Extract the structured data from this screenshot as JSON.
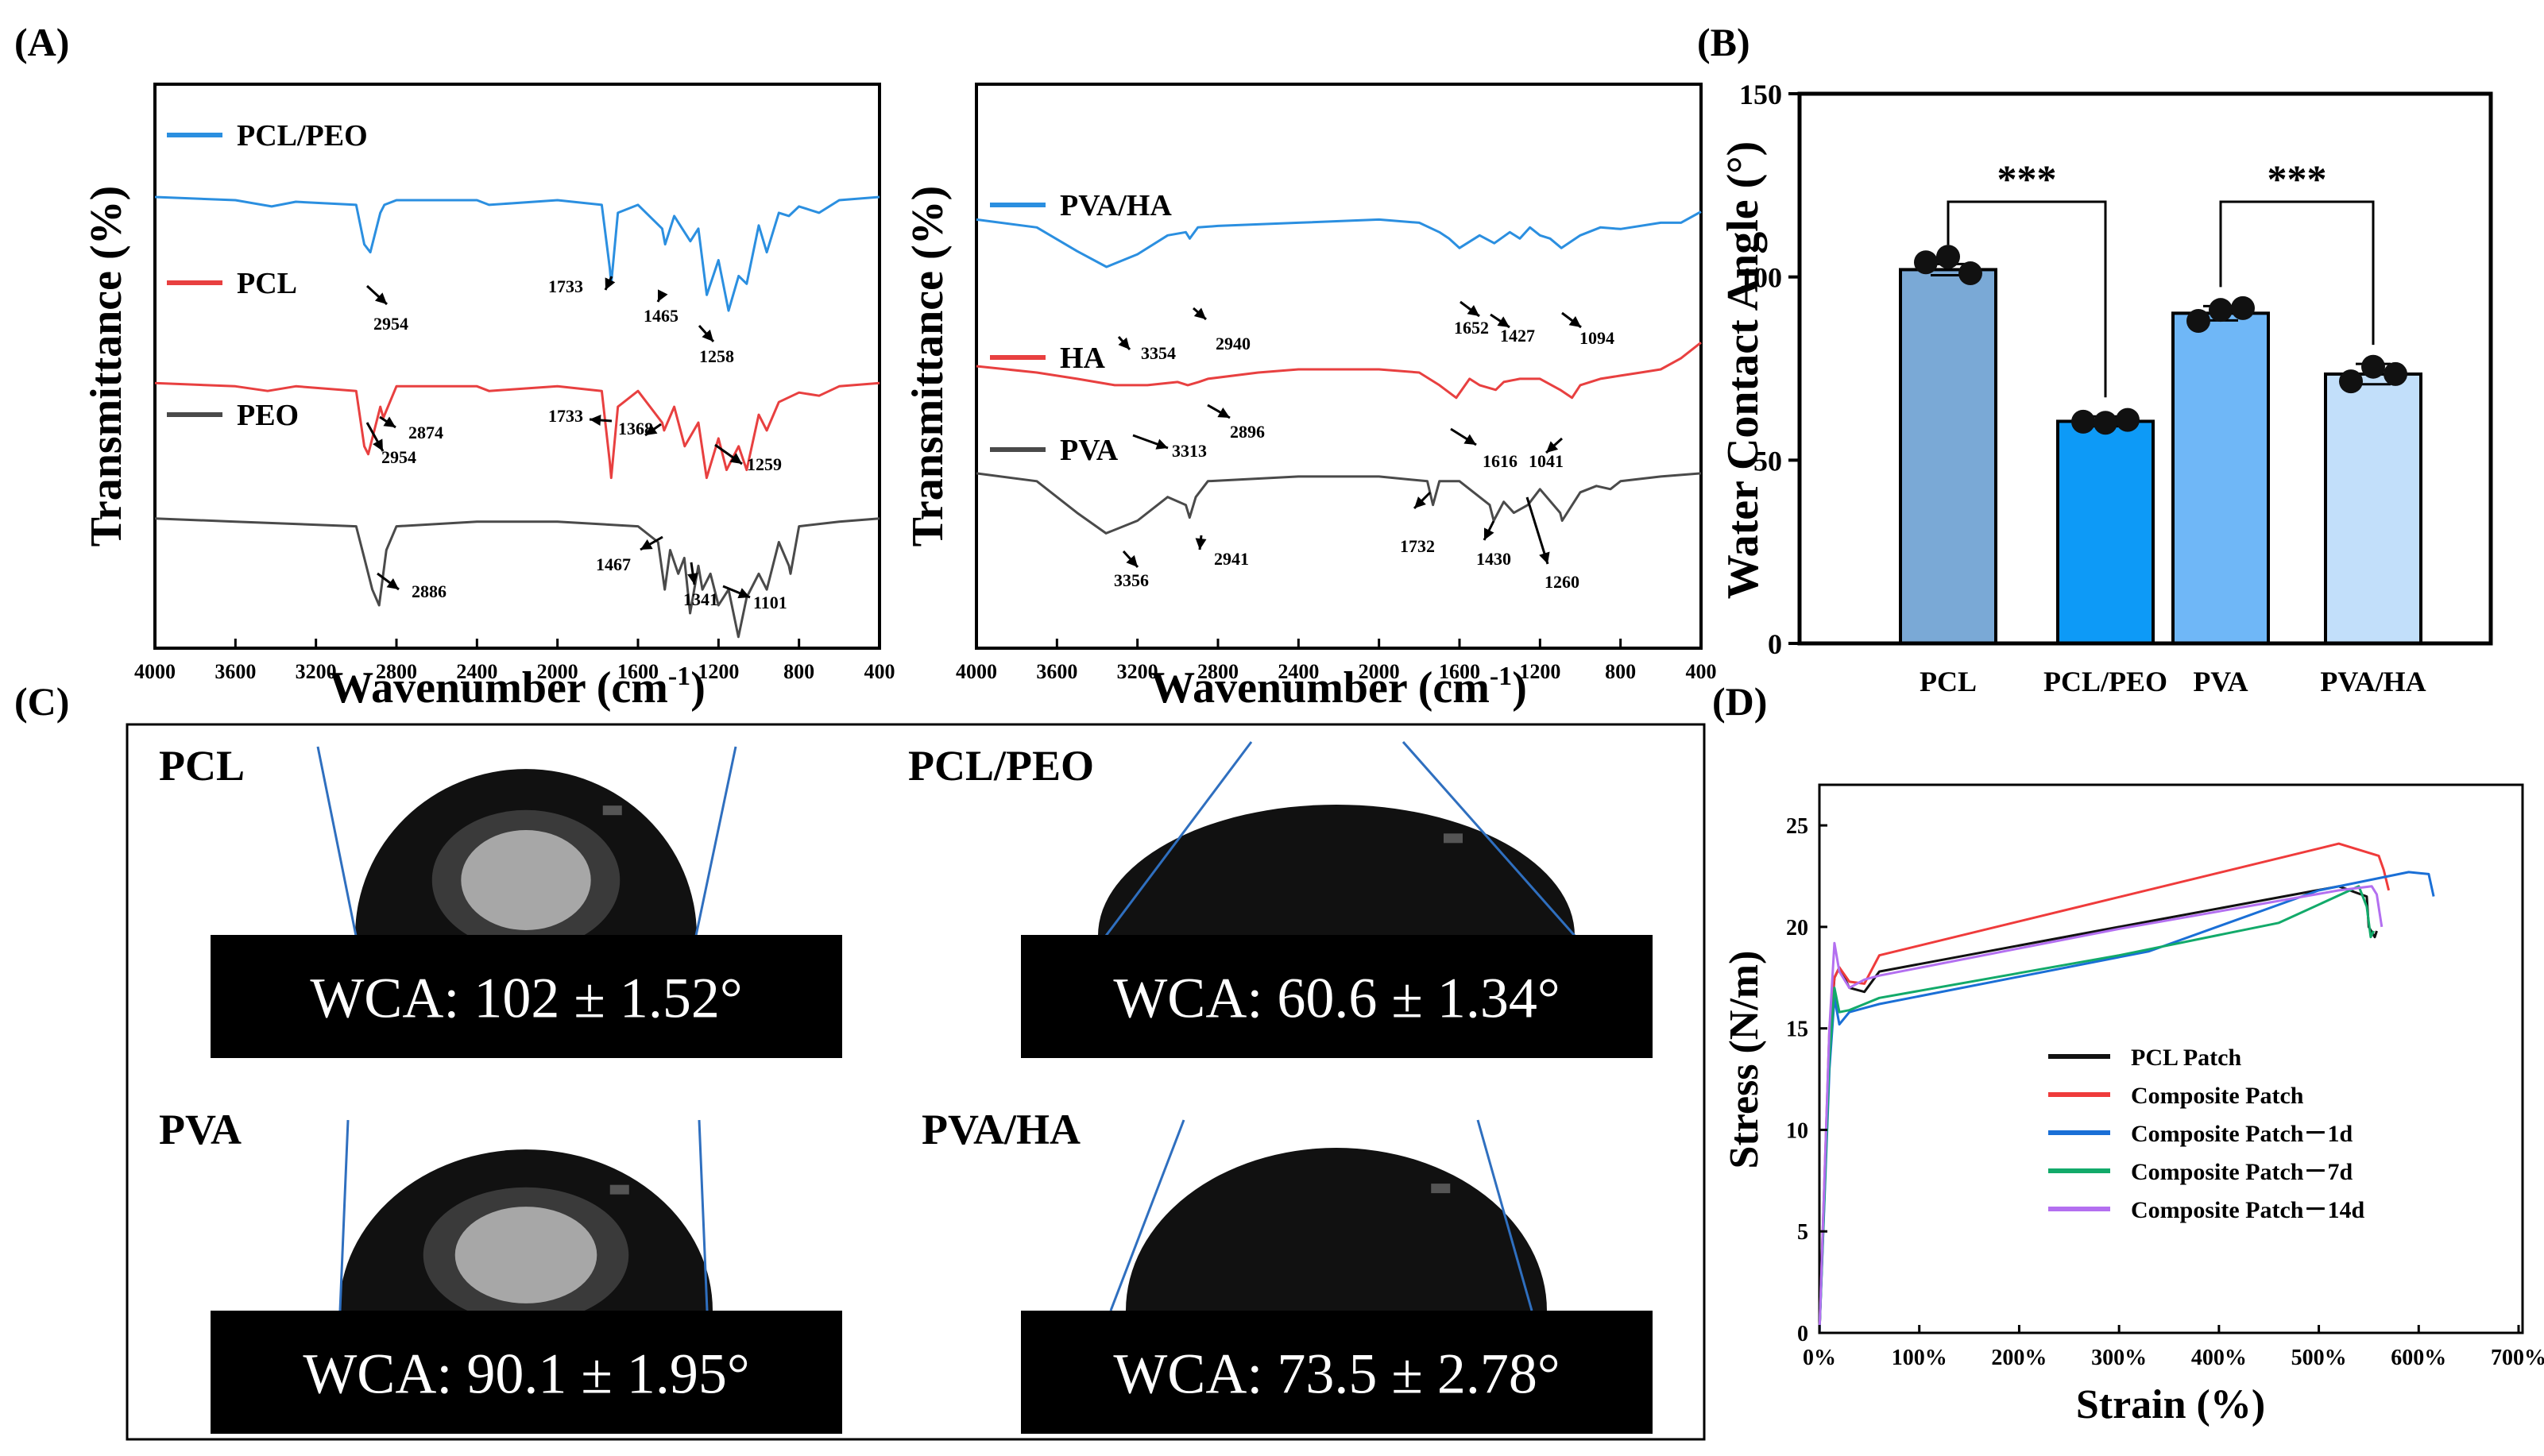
{
  "panel_labels": {
    "a": "(A)",
    "b": "(B)",
    "c": "(C)",
    "d": "(D)"
  },
  "colors": {
    "blue": "#2b8fe0",
    "red": "#e84040",
    "gray": "#4a4a4a",
    "bar1": "#7aa9d6",
    "bar2": "#0d9af7",
    "bar3": "#6fb7f7",
    "bar4": "#c2dffa",
    "d_black": "#111111",
    "d_red": "#ef3b3b",
    "d_blue": "#1a6fd6",
    "d_green": "#12aa6a",
    "d_purple": "#b36ff0"
  },
  "chart_data": [
    {
      "id": "A1",
      "type": "line",
      "xlabel": "Wavenumber (cm",
      "xlabel_sup": "-1",
      "xlabel_close": ")",
      "ylabel": "Transmittance (%)",
      "xlim": [
        4000,
        400
      ],
      "xticks": [
        4000,
        3600,
        3200,
        2800,
        2400,
        2000,
        1600,
        1200,
        800,
        400
      ],
      "series": [
        {
          "name": "PCL/PEO",
          "color": "#2b8fe0",
          "offset": 0.2,
          "x": [
            4000,
            3600,
            3420,
            3300,
            3000,
            2960,
            2930,
            2880,
            2860,
            2800,
            2400,
            2340,
            2000,
            1780,
            1740,
            1733,
            1700,
            1600,
            1480,
            1465,
            1420,
            1380,
            1340,
            1300,
            1258,
            1200,
            1150,
            1100,
            1060,
            1000,
            960,
            900,
            850,
            800,
            700,
            600,
            400
          ],
          "y": [
            0,
            0.02,
            0.06,
            0.03,
            0.05,
            0.3,
            0.35,
            0.1,
            0.05,
            0.02,
            0.02,
            0.05,
            0.02,
            0.05,
            0.45,
            0.55,
            0.1,
            0.05,
            0.2,
            0.3,
            0.12,
            0.2,
            0.28,
            0.2,
            0.62,
            0.4,
            0.72,
            0.5,
            0.55,
            0.18,
            0.35,
            0.1,
            0.12,
            0.06,
            0.1,
            0.02,
            0
          ]
        },
        {
          "name": "PCL",
          "color": "#e84040",
          "offset": 0.53,
          "x": [
            4000,
            3600,
            3440,
            3300,
            3000,
            2960,
            2940,
            2880,
            2865,
            2800,
            2400,
            2340,
            2000,
            1780,
            1740,
            1733,
            1700,
            1600,
            1480,
            1470,
            1420,
            1368,
            1300,
            1259,
            1200,
            1160,
            1100,
            1060,
            1000,
            960,
            900,
            800,
            700,
            600,
            400
          ],
          "y": [
            0,
            0.02,
            0.05,
            0.02,
            0.05,
            0.4,
            0.45,
            0.15,
            0.22,
            0.02,
            0.02,
            0.05,
            0.02,
            0.05,
            0.5,
            0.6,
            0.15,
            0.05,
            0.25,
            0.3,
            0.15,
            0.4,
            0.25,
            0.6,
            0.35,
            0.55,
            0.4,
            0.55,
            0.2,
            0.3,
            0.12,
            0.06,
            0.08,
            0.02,
            0
          ]
        },
        {
          "name": "PEO",
          "color": "#4a4a4a",
          "offset": 0.77,
          "x": [
            4000,
            3600,
            3000,
            2960,
            2920,
            2886,
            2850,
            2800,
            2400,
            2000,
            1600,
            1500,
            1467,
            1440,
            1400,
            1370,
            1341,
            1300,
            1280,
            1240,
            1200,
            1150,
            1101,
            1060,
            1000,
            960,
            900,
            850,
            842,
            800,
            600,
            400
          ],
          "y": [
            0,
            0.02,
            0.05,
            0.25,
            0.45,
            0.55,
            0.2,
            0.05,
            0.02,
            0.02,
            0.05,
            0.15,
            0.45,
            0.2,
            0.35,
            0.25,
            0.6,
            0.3,
            0.45,
            0.35,
            0.55,
            0.45,
            0.75,
            0.5,
            0.35,
            0.45,
            0.15,
            0.3,
            0.35,
            0.05,
            0.02,
            0
          ]
        }
      ],
      "legend": [
        "PCL/PEO",
        "PCL",
        "PEO"
      ],
      "annotations": [
        "2954",
        "1733",
        "1465",
        "1258",
        "2874",
        "2954",
        "1733",
        "1368",
        "1259",
        "2886",
        "1467",
        "1341",
        "1101"
      ]
    },
    {
      "id": "A2",
      "type": "line",
      "xlabel": "Wavenumber (cm",
      "xlabel_sup": "-1",
      "xlabel_close": ")",
      "ylabel": "Transmittance (%)",
      "xlim": [
        4000,
        400
      ],
      "xticks": [
        4000,
        3600,
        3200,
        2800,
        2400,
        2000,
        1600,
        1200,
        800,
        400
      ],
      "series": [
        {
          "name": "PVA/HA",
          "color": "#2b8fe0",
          "offset": 0.24,
          "x": [
            4000,
            3700,
            3500,
            3354,
            3200,
            3050,
            2960,
            2940,
            2900,
            2800,
            2400,
            2000,
            1800,
            1700,
            1652,
            1600,
            1500,
            1427,
            1350,
            1300,
            1250,
            1200,
            1150,
            1094,
            1000,
            900,
            800,
            600,
            500,
            400
          ],
          "y": [
            0,
            0.05,
            0.2,
            0.3,
            0.22,
            0.1,
            0.08,
            0.12,
            0.05,
            0.04,
            0.02,
            0,
            0.02,
            0.08,
            0.12,
            0.18,
            0.1,
            0.15,
            0.08,
            0.12,
            0.05,
            0.1,
            0.12,
            0.18,
            0.1,
            0.05,
            0.06,
            0.02,
            0.02,
            -0.05
          ]
        },
        {
          "name": "HA",
          "color": "#e84040",
          "offset": 0.5,
          "x": [
            4000,
            3700,
            3500,
            3313,
            3150,
            3000,
            2950,
            2896,
            2850,
            2600,
            2400,
            2000,
            1800,
            1700,
            1616,
            1550,
            1500,
            1420,
            1380,
            1300,
            1200,
            1100,
            1041,
            1000,
            900,
            800,
            700,
            600,
            500,
            400
          ],
          "y": [
            0,
            0.04,
            0.08,
            0.12,
            0.12,
            0.1,
            0.12,
            0.1,
            0.08,
            0.04,
            0.02,
            0.02,
            0.04,
            0.12,
            0.2,
            0.08,
            0.12,
            0.15,
            0.1,
            0.08,
            0.08,
            0.15,
            0.2,
            0.12,
            0.08,
            0.06,
            0.04,
            0.02,
            -0.05,
            -0.15
          ]
        },
        {
          "name": "PVA",
          "color": "#4a4a4a",
          "offset": 0.69,
          "x": [
            4000,
            3700,
            3500,
            3356,
            3200,
            3050,
            2960,
            2941,
            2910,
            2850,
            2400,
            2000,
            1760,
            1732,
            1700,
            1600,
            1450,
            1430,
            1380,
            1330,
            1260,
            1200,
            1100,
            1090,
            1000,
            920,
            850,
            800,
            600,
            400
          ],
          "y": [
            0,
            0.05,
            0.25,
            0.38,
            0.3,
            0.15,
            0.2,
            0.28,
            0.15,
            0.05,
            0.02,
            0.02,
            0.05,
            0.2,
            0.05,
            0.05,
            0.2,
            0.3,
            0.18,
            0.25,
            0.2,
            0.1,
            0.25,
            0.3,
            0.12,
            0.08,
            0.1,
            0.05,
            0.02,
            0
          ]
        }
      ],
      "legend": [
        "PVA/HA",
        "HA",
        "PVA"
      ],
      "annotations": [
        "3354",
        "2940",
        "1652",
        "1427",
        "1094",
        "3313",
        "2896",
        "1616",
        "1041",
        "3356",
        "2941",
        "1732",
        "1430",
        "1260"
      ]
    },
    {
      "id": "B",
      "type": "bar",
      "ylabel": "Water Contact Angle (°)",
      "categories": [
        "PCL",
        "PCL/PEO",
        "PVA",
        "PVA/HA"
      ],
      "values": [
        102,
        60.6,
        90.1,
        73.5
      ],
      "errors": [
        1.52,
        1.34,
        1.95,
        2.78
      ],
      "points": [
        [
          104,
          105.5,
          101
        ],
        [
          60.5,
          60.2,
          61
        ],
        [
          88,
          91,
          91.5
        ],
        [
          71.5,
          75.5,
          73.5
        ]
      ],
      "ylim": [
        0,
        150
      ],
      "yticks": [
        0,
        50,
        100,
        150
      ],
      "significance": [
        "***",
        "***"
      ]
    },
    {
      "id": "D",
      "type": "line",
      "xlabel": "Strain (%)",
      "ylabel": "Stress (N/m)",
      "xlim": [
        0,
        700
      ],
      "ylim": [
        0,
        27
      ],
      "xticks": [
        "0%",
        "100%",
        "200%",
        "300%",
        "400%",
        "500%",
        "600%",
        "700%"
      ],
      "yticks": [
        0,
        5,
        10,
        15,
        20,
        25
      ],
      "series": [
        {
          "name": "PCL Patch",
          "color": "#111111",
          "x": [
            0,
            10,
            15,
            20,
            30,
            45,
            60,
            300,
            520,
            548,
            550,
            556,
            558
          ],
          "y": [
            0,
            14,
            17.5,
            18,
            17,
            16.8,
            17.8,
            20,
            22,
            21.5,
            20,
            19.5,
            19.8
          ]
        },
        {
          "name": "Composite  Patch",
          "color": "#ef3b3b",
          "x": [
            0,
            10,
            15,
            20,
            30,
            45,
            60,
            520,
            560,
            565,
            570
          ],
          "y": [
            0,
            15,
            17.5,
            18,
            17.3,
            17.2,
            18.6,
            24.1,
            23.5,
            22.8,
            21.8
          ]
        },
        {
          "name": "Composite  Patch－1d",
          "color": "#1a6fd6",
          "x": [
            0,
            10,
            15,
            20,
            30,
            45,
            60,
            330,
            500,
            590,
            610,
            615
          ],
          "y": [
            0,
            13,
            16.5,
            15.2,
            15.8,
            16.0,
            16.2,
            18.8,
            21.8,
            22.7,
            22.6,
            21.5
          ]
        },
        {
          "name": "Composite  Patch－7d",
          "color": "#12aa6a",
          "x": [
            0,
            10,
            15,
            20,
            30,
            45,
            60,
            300,
            460,
            540,
            548,
            552,
            555
          ],
          "y": [
            0,
            13.5,
            17.0,
            15.8,
            15.9,
            16.2,
            16.5,
            18.6,
            20.2,
            22.0,
            21.0,
            19.5,
            19.8
          ]
        },
        {
          "name": "Composite  Patch－14d",
          "color": "#b36ff0",
          "x": [
            0,
            10,
            15,
            20,
            30,
            45,
            60,
            300,
            520,
            553,
            558,
            563
          ],
          "y": [
            0,
            15,
            19.2,
            17.8,
            17.0,
            17.4,
            17.6,
            19.9,
            21.8,
            22.0,
            21.6,
            20.0
          ]
        }
      ]
    }
  ],
  "panel_c": {
    "images": [
      {
        "label": "PCL",
        "wca": "WCA: 102 ± 1.52°"
      },
      {
        "label": "PCL/PEO",
        "wca": "WCA: 60.6 ± 1.34°"
      },
      {
        "label": "PVA",
        "wca": "WCA: 90.1 ± 1.95°"
      },
      {
        "label": "PVA/HA",
        "wca": "WCA: 73.5 ± 2.78°"
      }
    ]
  }
}
